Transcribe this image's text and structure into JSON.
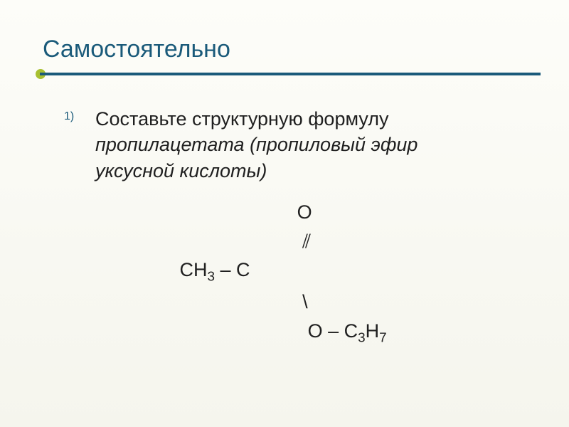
{
  "theme": {
    "title_color": "#1a5a7a",
    "accent_color": "#a8c030",
    "text_color": "#202020",
    "bg_top": "#fdfdf9",
    "bg_bottom": "#f5f5ed",
    "title_fontsize": 34,
    "body_fontsize": 27,
    "list_number_fontsize": 16
  },
  "title": "Самостоятельно",
  "item_number": "1)",
  "task_line1": "Составьте структурную формулу ",
  "task_italic1": "пропилацетата (пропиловый эфир ",
  "task_italic2": "уксусной кислоты)",
  "formula": {
    "line1_spaces": "                                 ",
    "atom_O": "O",
    "line2_spaces": "                                  ",
    "dbl_bond": "⫽",
    "line3_pre": "           CH",
    "sub3": "3",
    "line3_mid": " – C",
    "line4_spaces": "                                  ",
    "single_bond": "\\",
    "line5_spaces": "                                   ",
    "line5_O": "O – C",
    "line5_sub3": "3",
    "line5_H": "H",
    "line5_sub7": "7"
  }
}
